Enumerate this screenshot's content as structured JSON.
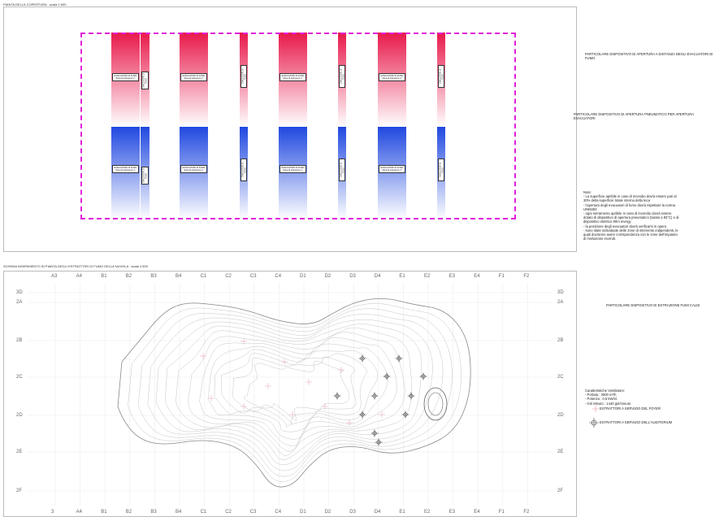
{
  "top": {
    "title": "PIANTA DELLA COPERTURA - scala 1:500",
    "note1": "PARTICOLARE DISPOSITIVO DI APERTURA A DISTANZA DEGLI EVACUATORI DI FUMO",
    "note2": "PARTICOLARE DISPOSITIVO DI APERTURA PNEUMATICO PER APERTURA EVACUATORI",
    "notes_title": "Note:",
    "notes": [
      "- La superficie apribile in caso di incendio dovrà essere pari al",
      "30% della superficie totale interna della teca",
      "- l'apertura degli evacuatori di fumo dovrà rispettare la norma",
      "UNI9494",
      "- ogni serramento apribile in caso di incendio dovrà essere",
      "dotato di dispositivo di apertura pneumatico (tarato a 93°C) e di",
      "dispositivo elettrico 90m energy",
      "- la posizione degli evacuatori dovrà verificarsi in opera",
      "- sono state individuate delle zone di intervento indipendenti, le",
      "quali dovranno avere corrispondenza con le zone dell'impianto",
      "di rivelazione incendi."
    ],
    "tag_wide": "EVACUATORI DI FUMO\nZona di intervento n°",
    "tag_narrow": "EVACUATORI DI FUMO",
    "colors": {
      "red": "#e8184a",
      "blue": "#2048e0",
      "dash": "#e020d8"
    }
  },
  "bottom": {
    "title": "SCHEMA INSERIMENTO IN PIANTA DEGLI ESTRATTORI DI FUMO DELLA NUVOLA - scala 1:500",
    "note1": "PARTICOLARE DISPOSITIVO DI ESTRAZIONE FUMI CALDI",
    "specs_title": "Caratteristiche Ventilatore:",
    "specs": [
      "- Portata : 3000 m³/h",
      "- Potenza : 0,5 kW/el.",
      "- Giri Minuto : 1440 giri/minuto"
    ],
    "legend": [
      {
        "label": "ESTRATTORI A SERVIZIO DEL FOYER",
        "icon": "cross-marker-icon"
      },
      {
        "label": "ESTRATTORI A SERVIZIO DELL'AUDITORIUM",
        "icon": "extractor-marker-icon"
      }
    ],
    "columns": [
      "A3",
      "A4",
      "B1",
      "B2",
      "B3",
      "B4",
      "C1",
      "C2",
      "C3",
      "C4",
      "D1",
      "D2",
      "D3",
      "D4",
      "E1",
      "E2",
      "E3",
      "E4",
      "F1",
      "F2"
    ],
    "columns_bottom": [
      "3",
      "A4",
      "B1",
      "B2",
      "B3",
      "B4",
      "C1",
      "C2",
      "C3",
      "C4",
      "D1",
      "D2",
      "D3",
      "D4",
      "E1",
      "E2",
      "E3",
      "E4",
      "F1",
      "F2"
    ],
    "rows": [
      "3D",
      "2A",
      "2B",
      "2C",
      "2D",
      "2E",
      "2F"
    ]
  }
}
